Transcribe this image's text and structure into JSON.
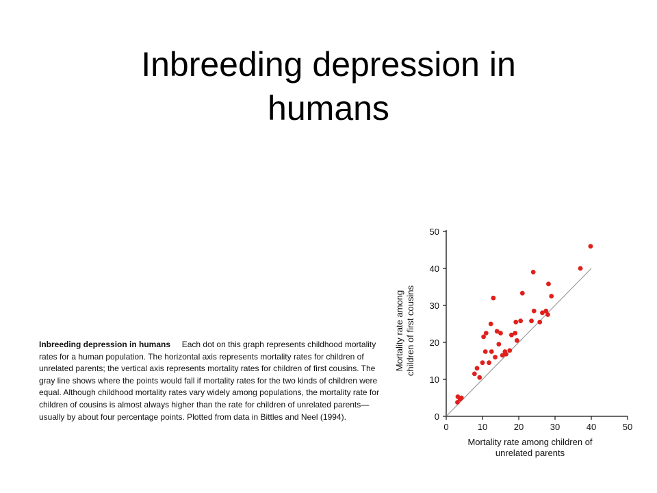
{
  "slide": {
    "title": "Inbreeding depression in humans"
  },
  "caption": {
    "heading": "Inbreeding depression in humans",
    "body": "Each dot on this graph represents childhood mortality rates for a human population. The horizontal axis represents mortality rates for children of unrelated parents; the vertical axis represents mortality rates for children of first cousins. The gray line shows where the points would fall if mortality rates for the two kinds of children were equal. Although childhood mortality rates vary widely among populations, the mortality rate for children of cousins is almost always higher than the rate for children of unrelated parents—usually by about four percentage points. Plotted from data in Bittles and Neel (1994)."
  },
  "chart_data": {
    "type": "scatter",
    "xlabel": "Mortality rate among children of unrelated parents",
    "ylabel": "Mortality rate among children of first cousins",
    "xlim": [
      0,
      50
    ],
    "ylim": [
      0,
      50
    ],
    "xticks": [
      0,
      10,
      20,
      30,
      40,
      50
    ],
    "yticks": [
      0,
      10,
      20,
      30,
      40,
      50
    ],
    "point_color": "#e0201c",
    "line_color": "#999999",
    "reference_line": {
      "from": [
        0,
        0
      ],
      "to": [
        40,
        40
      ]
    },
    "points": [
      [
        3.2,
        5.3
      ],
      [
        3.1,
        3.8
      ],
      [
        3.8,
        4.6
      ],
      [
        4.2,
        5.0
      ],
      [
        7.8,
        11.5
      ],
      [
        8.5,
        13.0
      ],
      [
        9.2,
        10.5
      ],
      [
        10.0,
        14.5
      ],
      [
        10.3,
        21.5
      ],
      [
        10.8,
        17.5
      ],
      [
        11.0,
        22.5
      ],
      [
        11.8,
        14.5
      ],
      [
        12.3,
        25.0
      ],
      [
        12.5,
        17.5
      ],
      [
        13.0,
        32.0
      ],
      [
        13.5,
        16.0
      ],
      [
        14.0,
        23.0
      ],
      [
        14.5,
        19.5
      ],
      [
        15.0,
        22.5
      ],
      [
        15.5,
        16.5
      ],
      [
        16.2,
        17.5
      ],
      [
        16.5,
        16.8
      ],
      [
        17.5,
        17.8
      ],
      [
        18.0,
        22.0
      ],
      [
        19.0,
        22.5
      ],
      [
        19.2,
        25.5
      ],
      [
        19.5,
        20.5
      ],
      [
        20.5,
        25.8
      ],
      [
        21.0,
        33.3
      ],
      [
        23.5,
        25.8
      ],
      [
        24.0,
        39.0
      ],
      [
        24.2,
        28.5
      ],
      [
        25.8,
        25.5
      ],
      [
        26.5,
        28.0
      ],
      [
        27.5,
        28.5
      ],
      [
        28.0,
        27.5
      ],
      [
        28.2,
        35.8
      ],
      [
        29.0,
        32.5
      ],
      [
        37.0,
        40.0
      ],
      [
        39.8,
        46.0
      ]
    ]
  }
}
